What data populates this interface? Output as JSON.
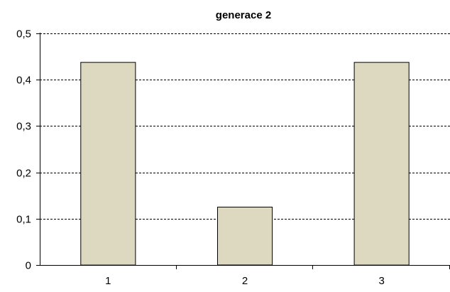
{
  "chart_data": {
    "type": "bar",
    "title": "generace 2",
    "xlabel": "",
    "ylabel": "",
    "categories": [
      "1",
      "2",
      "3"
    ],
    "values": [
      0.4375,
      0.125,
      0.4375
    ],
    "ylim": [
      0,
      0.5
    ],
    "yticks": [
      0,
      0.1,
      0.2,
      0.3,
      0.4,
      0.5
    ],
    "ytick_labels": [
      "0",
      "0,1",
      "0,2",
      "0,3",
      "0,4",
      "0,5"
    ],
    "grid": true,
    "legend": "none",
    "bar_color": "#ddd8c0",
    "bar_edge_color": "#000000"
  }
}
